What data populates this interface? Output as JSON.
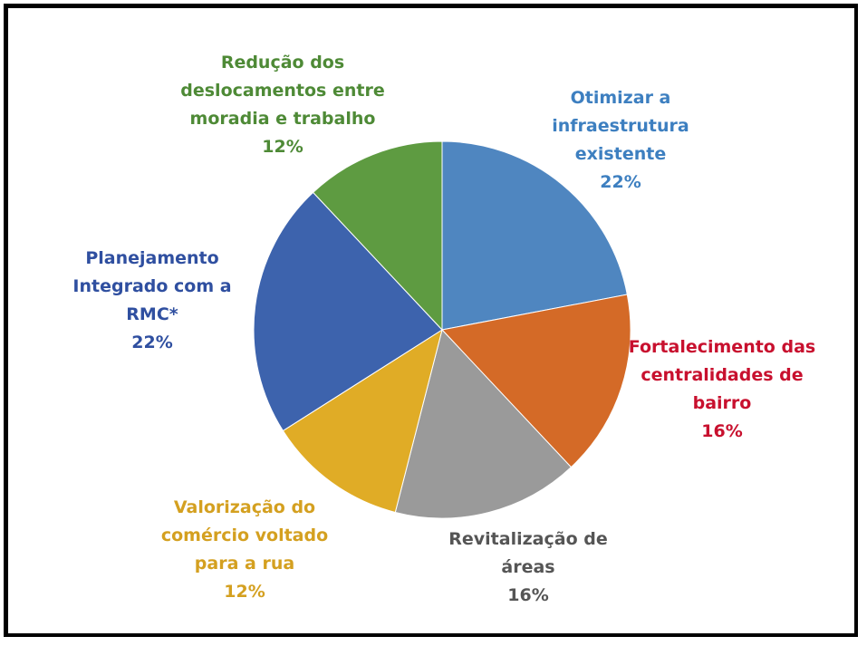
{
  "chart_data": {
    "type": "pie",
    "categories": [
      "Otimizar a infraestrutura existente",
      "Fortalecimento das centralidades de bairro",
      "Revitalização de áreas",
      "Valorização do comércio voltado para a rua",
      "Planejamento Integrado com a RMC*",
      "Redução dos deslocamentos entre moradia e trabalho"
    ],
    "values": [
      22,
      16,
      16,
      12,
      22,
      12
    ],
    "value_labels": [
      "22%",
      "16%",
      "16%",
      "12%",
      "22%",
      "12%"
    ],
    "colors": [
      "#4f86c0",
      "#d46a27",
      "#9a9a9a",
      "#e0ac26",
      "#3d63ad",
      "#5e9b41"
    ],
    "label_colors": [
      "#3d7fc0",
      "#c8102e",
      "#555555",
      "#d4a020",
      "#2f4fa0",
      "#4e8a36"
    ]
  }
}
